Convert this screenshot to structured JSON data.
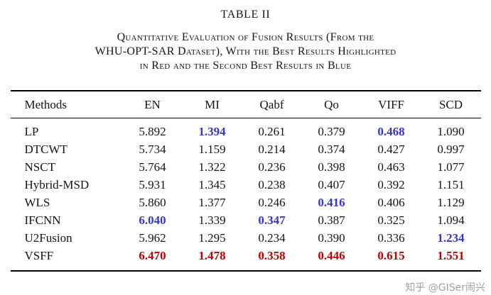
{
  "page": {
    "title": "TABLE II",
    "caption_lines": [
      "Quantitative Evaluation of Fusion Results (From the",
      "WHU-OPT-SAR Dataset), With the Best Results Highlighted",
      "in Red and the Second Best Results in Blue"
    ],
    "watermark": "知乎 @GISer闹兴"
  },
  "colors": {
    "best": "#bf0000",
    "second_best": "#3535cc"
  },
  "chart_data": {
    "type": "table",
    "columns": [
      "Methods",
      "EN",
      "MI",
      "Qabf",
      "Qo",
      "VIFF",
      "SCD"
    ],
    "rows": [
      {
        "method": "LP",
        "values": [
          "5.892",
          "1.394",
          "0.261",
          "0.379",
          "0.468",
          "1.090"
        ],
        "hl": [
          "",
          "second",
          "",
          "",
          "second",
          ""
        ]
      },
      {
        "method": "DTCWT",
        "values": [
          "5.734",
          "1.159",
          "0.214",
          "0.374",
          "0.427",
          "0.997"
        ],
        "hl": [
          "",
          "",
          "",
          "",
          "",
          ""
        ]
      },
      {
        "method": "NSCT",
        "values": [
          "5.764",
          "1.322",
          "0.236",
          "0.398",
          "0.463",
          "1.077"
        ],
        "hl": [
          "",
          "",
          "",
          "",
          "",
          ""
        ]
      },
      {
        "method": "Hybrid-MSD",
        "values": [
          "5.931",
          "1.345",
          "0.238",
          "0.407",
          "0.392",
          "1.151"
        ],
        "hl": [
          "",
          "",
          "",
          "",
          "",
          ""
        ]
      },
      {
        "method": "WLS",
        "values": [
          "5.860",
          "1.377",
          "0.246",
          "0.416",
          "0.406",
          "1.129"
        ],
        "hl": [
          "",
          "",
          "",
          "second",
          "",
          ""
        ]
      },
      {
        "method": "IFCNN",
        "values": [
          "6.040",
          "1.339",
          "0.347",
          "0.387",
          "0.325",
          "1.094"
        ],
        "hl": [
          "second",
          "",
          "second",
          "",
          "",
          ""
        ]
      },
      {
        "method": "U2Fusion",
        "values": [
          "5.962",
          "1.295",
          "0.234",
          "0.390",
          "0.336",
          "1.234"
        ],
        "hl": [
          "",
          "",
          "",
          "",
          "",
          "second"
        ]
      },
      {
        "method": "VSFF",
        "values": [
          "6.470",
          "1.478",
          "0.358",
          "0.446",
          "0.615",
          "1.551"
        ],
        "hl": [
          "best",
          "best",
          "best",
          "best",
          "best",
          "best"
        ]
      }
    ]
  }
}
